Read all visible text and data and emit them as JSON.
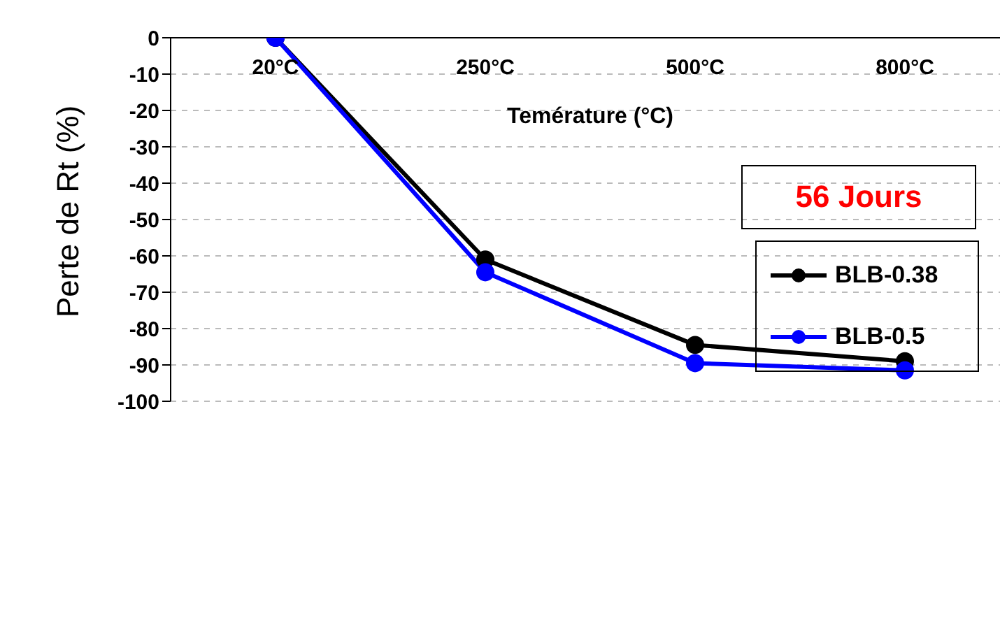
{
  "chart_data": {
    "type": "line",
    "xlabel": "Temérature (°C)",
    "ylabel": "Perte de Rt (%)",
    "categories": [
      "20°C",
      "250°C",
      "500°C",
      "800°C"
    ],
    "series": [
      {
        "name": "BLB-0.38",
        "color": "#000000",
        "values": [
          0,
          -61,
          -84.5,
          -89
        ]
      },
      {
        "name": "BLB-0.5",
        "color": "#0000ff",
        "values": [
          0,
          -64.5,
          -89.5,
          -91.5
        ]
      }
    ],
    "ylim": [
      -100,
      0
    ],
    "yticks": [
      0,
      -10,
      -20,
      -30,
      -40,
      -50,
      -60,
      -70,
      -80,
      -90,
      -100
    ],
    "grid": "y",
    "legend": "right",
    "marker": "circle",
    "line_style": "solid",
    "annotations": [
      "56 Jours"
    ]
  }
}
